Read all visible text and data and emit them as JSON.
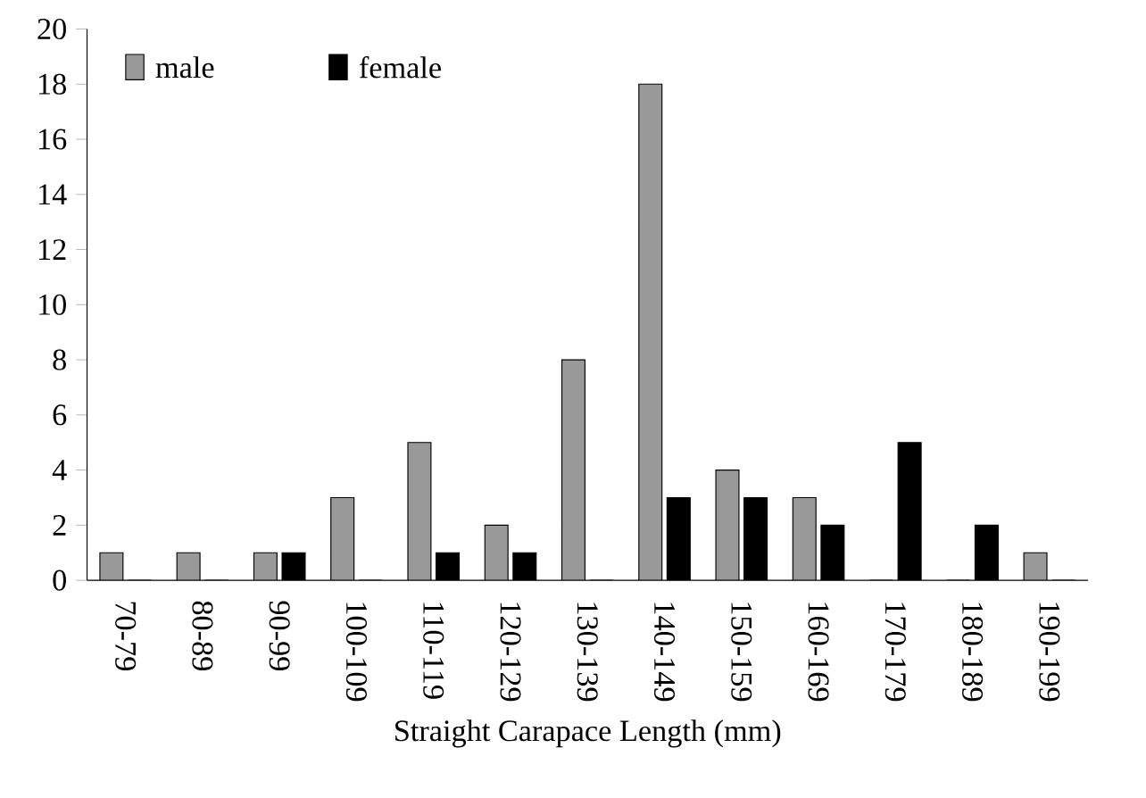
{
  "chart_data": {
    "type": "bar",
    "xlabel": "Straight Carapace Length (mm)",
    "categories": [
      "70-79",
      "80-89",
      "90-99",
      "100-109",
      "110-119",
      "120-129",
      "130-139",
      "140-149",
      "150-159",
      "160-169",
      "170-179",
      "180-189",
      "190-199"
    ],
    "series": [
      {
        "name": "male",
        "color": "#999999",
        "values": [
          1,
          1,
          1,
          3,
          5,
          2,
          8,
          18,
          4,
          3,
          0,
          0,
          1
        ]
      },
      {
        "name": "female",
        "color": "#000000",
        "values": [
          0,
          0,
          1,
          0,
          1,
          1,
          0,
          3,
          3,
          2,
          5,
          2,
          0
        ]
      }
    ],
    "ylim": [
      0,
      20
    ],
    "yticks": [
      0,
      2,
      4,
      6,
      8,
      10,
      12,
      14,
      16,
      18,
      20
    ],
    "legend": "top left"
  }
}
